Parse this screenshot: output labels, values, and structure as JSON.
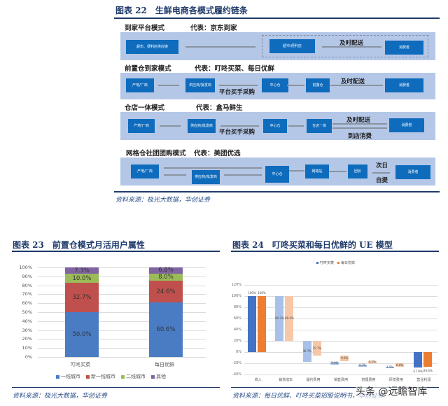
{
  "fig22": {
    "title": "图表 22　生鲜电商各模式履约链条",
    "rows": [
      {
        "label": "到家平台模式",
        "rep": "代表：京东到家",
        "nodes": [
          "超市、便利店供应链",
          "超市/便利店",
          "消费者"
        ],
        "flow": [
          "及时配送"
        ]
      },
      {
        "label": "前置仓到家模式",
        "rep": "代表：叮咚买菜、每日优鲜",
        "nodes": [
          "产地/厂商",
          "供应商/批发商",
          "中心仓",
          "前置仓",
          "消费者"
        ],
        "flow": [
          "平台买手采购",
          "及时配送"
        ]
      },
      {
        "label": "仓店一体模式",
        "rep": "代表：盒马鲜生",
        "nodes": [
          "产地/厂商",
          "供应商/批发商",
          "中心仓",
          "仓店一体",
          "消费者"
        ],
        "flow": [
          "平台买手采购",
          "及时配送",
          "到店消费"
        ]
      },
      {
        "label": "网格仓社团团购模式",
        "rep": "代表：美团优选",
        "nodes": [
          "产地/厂商",
          "供应商/批发商",
          "中心仓",
          "网格站",
          "团长",
          "消费者"
        ],
        "flow": [
          "次日",
          "自提"
        ]
      }
    ],
    "source": "资料来源：极光大数据，华创证券"
  },
  "fig23": {
    "title": "图表 23　前置仓模式月活用户属性",
    "source": "资料来源：极光大数据，华创证券"
  },
  "fig24": {
    "title": "图表 24　叮咚买菜和每日优鲜的 UE 模型",
    "source": "资料来源：每日优鲜、叮咚买菜招股说明书，华创证券"
  },
  "watermark": "头条 @远瞻智库",
  "chart_data": [
    {
      "type": "bar",
      "stacked": true,
      "title": "前置仓模式月活用户属性",
      "categories": [
        "叮咚买菜",
        "每日优鲜"
      ],
      "series": [
        {
          "name": "一线城市",
          "color": "#4a7cc4",
          "values": [
            50.0,
            60.6
          ]
        },
        {
          "name": "新一线城市",
          "color": "#c0504d",
          "values": [
            32.7,
            24.6
          ]
        },
        {
          "name": "二线城市",
          "color": "#9bbb59",
          "values": [
            10.0,
            8.0
          ]
        },
        {
          "name": "其他",
          "color": "#8064a2",
          "values": [
            7.3,
            6.8
          ]
        }
      ],
      "yticks": [
        "0%",
        "10%",
        "20%",
        "30%",
        "40%",
        "50%",
        "60%",
        "70%",
        "80%",
        "90%",
        "100%"
      ],
      "ylim": [
        0,
        100
      ],
      "legend_position": "bottom",
      "grid": true
    },
    {
      "type": "bar",
      "subtype": "waterfall",
      "title": "叮咚买菜和每日优鲜的 UE 模型",
      "categories": [
        "收入",
        "销货成本",
        "履约费用",
        "销售费用",
        "管理费用",
        "研发费用",
        "营业利润"
      ],
      "series": [
        {
          "name": "叮咚买菜",
          "color": "#4472c4",
          "values": [
            100,
            80.3,
            36.7,
            5.0,
            4.3,
            1.5,
            -27.9
          ]
        },
        {
          "name": "每日优鲜",
          "color": "#ed7d31",
          "values": [
            100,
            80.4,
            25.7,
            9.6,
            4.5,
            6.0,
            -26.6
          ]
        }
      ],
      "labels": {
        "叮咚买菜": [
          "100%",
          "80.3%",
          "36.7%",
          "5.0%",
          "4.3%",
          "1.5%",
          "-27.9%"
        ],
        "每日优鲜": [
          "100%",
          "80.4%",
          "25.7%",
          "9.6%",
          "4.5%",
          "6.0%",
          "-26.6%"
        ]
      },
      "yticks": [
        "-40%",
        "-20%",
        "0%",
        "20%",
        "40%",
        "60%",
        "80%",
        "100%",
        "120%"
      ],
      "ylim": [
        -40,
        120
      ],
      "legend_position": "top",
      "grid": true
    }
  ]
}
